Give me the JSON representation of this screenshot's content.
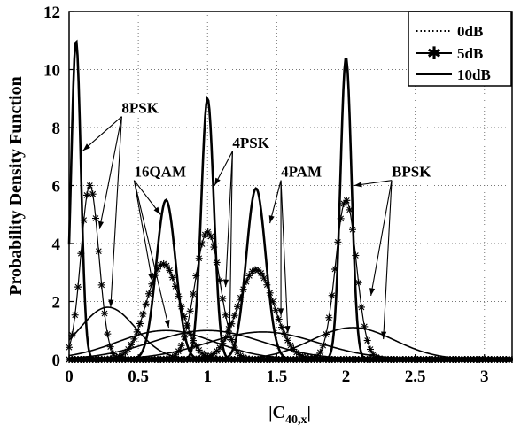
{
  "chart_data": {
    "type": "line",
    "title": "",
    "xlabel": "|C",
    "xlabel_sub": "40,x",
    "xlabel_end": "|",
    "ylabel": "Probability Density Function",
    "xlim": [
      0,
      3.2
    ],
    "ylim": [
      0,
      12
    ],
    "xticks": [
      0,
      0.5,
      1,
      1.5,
      2,
      2.5,
      3
    ],
    "xtick_labels": [
      "0",
      "0.5",
      "1",
      "1.5",
      "2",
      "2.5",
      "3"
    ],
    "yticks": [
      0,
      2,
      4,
      6,
      8,
      10,
      12
    ],
    "ytick_labels": [
      "0",
      "2",
      "4",
      "6",
      "8",
      "10",
      "12"
    ],
    "grid": true,
    "legend_position": "top-right",
    "legend": [
      {
        "label": "0dB",
        "style": "dotted"
      },
      {
        "label": "5dB",
        "style": "star"
      },
      {
        "label": "10dB",
        "style": "solid"
      }
    ],
    "series": [
      {
        "name": "10dB",
        "curves": [
          {
            "mean": 0.05,
            "peak": 11.0,
            "sd": 0.035
          },
          {
            "mean": 0.7,
            "peak": 5.5,
            "sd": 0.07
          },
          {
            "mean": 1.0,
            "peak": 9.0,
            "sd": 0.045
          },
          {
            "mean": 1.35,
            "peak": 5.9,
            "sd": 0.07
          },
          {
            "mean": 2.0,
            "peak": 10.4,
            "sd": 0.04
          }
        ]
      },
      {
        "name": "5dB",
        "curves": [
          {
            "mean": 0.15,
            "peak": 6.0,
            "sd": 0.065
          },
          {
            "mean": 0.68,
            "peak": 3.3,
            "sd": 0.12
          },
          {
            "mean": 1.0,
            "peak": 4.4,
            "sd": 0.09
          },
          {
            "mean": 1.35,
            "peak": 3.1,
            "sd": 0.13
          },
          {
            "mean": 2.0,
            "peak": 5.5,
            "sd": 0.075
          }
        ]
      },
      {
        "name": "0dB",
        "curves": [
          {
            "mean": 0.28,
            "peak": 1.8,
            "sd": 0.2
          },
          {
            "mean": 0.7,
            "peak": 1.0,
            "sd": 0.35
          },
          {
            "mean": 1.0,
            "peak": 1.0,
            "sd": 0.4
          },
          {
            "mean": 1.4,
            "peak": 0.95,
            "sd": 0.4
          },
          {
            "mean": 2.05,
            "peak": 1.1,
            "sd": 0.3
          }
        ]
      }
    ],
    "annotations": [
      {
        "text": "8PSK",
        "x": 0.38,
        "y": 8.5,
        "arrows_to": [
          [
            0.1,
            7.2
          ],
          [
            0.22,
            4.5
          ],
          [
            0.3,
            1.8
          ]
        ]
      },
      {
        "text": "16QAM",
        "x": 0.47,
        "y": 6.3,
        "arrows_to": [
          [
            0.66,
            5.0
          ],
          [
            0.6,
            2.7
          ],
          [
            0.72,
            1.1
          ]
        ]
      },
      {
        "text": "4PSK",
        "x": 1.18,
        "y": 7.3,
        "arrows_to": [
          [
            1.05,
            6.0
          ],
          [
            1.13,
            2.5
          ],
          [
            1.16,
            1.0
          ]
        ]
      },
      {
        "text": "4PAM",
        "x": 1.53,
        "y": 6.3,
        "arrows_to": [
          [
            1.45,
            4.7
          ],
          [
            1.53,
            1.5
          ],
          [
            1.58,
            0.9
          ]
        ]
      },
      {
        "text": "BPSK",
        "x": 2.33,
        "y": 6.3,
        "arrows_to": [
          [
            2.06,
            6.0
          ],
          [
            2.18,
            2.2
          ],
          [
            2.27,
            0.7
          ]
        ]
      }
    ]
  }
}
